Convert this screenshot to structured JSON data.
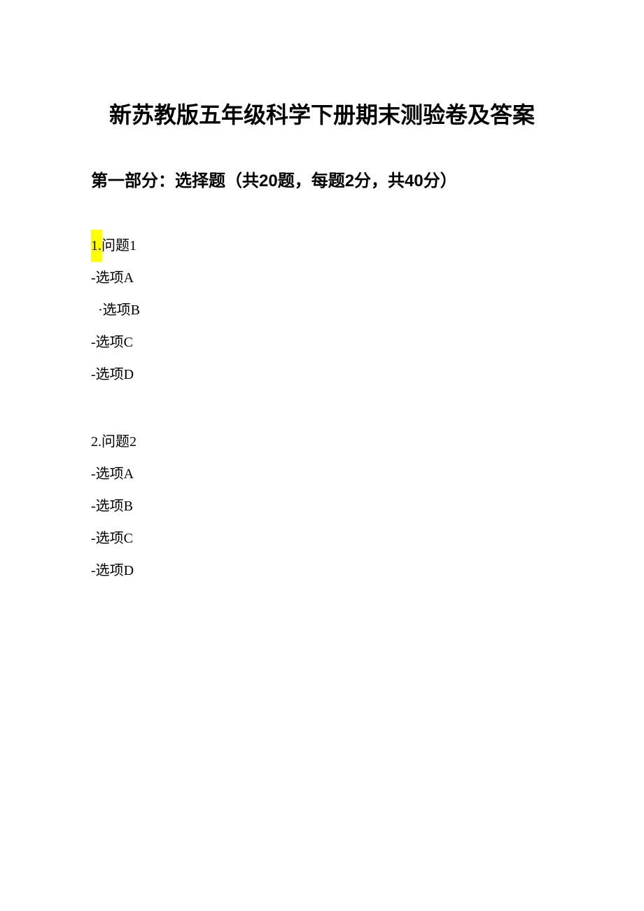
{
  "document": {
    "title": "新苏教版五年级科学下册期末测验卷及答案",
    "section_header": "第一部分：选择题（共20题，每题2分，共40分）",
    "questions": [
      {
        "number": "1.",
        "text": "问题1",
        "highlighted": true,
        "options": [
          {
            "prefix": "-",
            "text": "选项A",
            "style": "dash"
          },
          {
            "prefix": "·",
            "text": "选项B",
            "style": "dot"
          },
          {
            "prefix": "-",
            "text": "选项C",
            "style": "dash"
          },
          {
            "prefix": "-",
            "text": "选项D",
            "style": "dash"
          }
        ]
      },
      {
        "number": "2.",
        "text": "问题2",
        "highlighted": false,
        "options": [
          {
            "prefix": "-",
            "text": "选项A",
            "style": "dash"
          },
          {
            "prefix": "-",
            "text": "选项B",
            "style": "dash"
          },
          {
            "prefix": "-",
            "text": "选项C",
            "style": "dash"
          },
          {
            "prefix": "-",
            "text": "选项D",
            "style": "dash"
          }
        ]
      }
    ],
    "colors": {
      "background": "#ffffff",
      "text": "#000000",
      "highlight": "#ffff00"
    },
    "typography": {
      "title_fontsize": 32,
      "section_fontsize": 24,
      "body_fontsize": 20
    }
  }
}
